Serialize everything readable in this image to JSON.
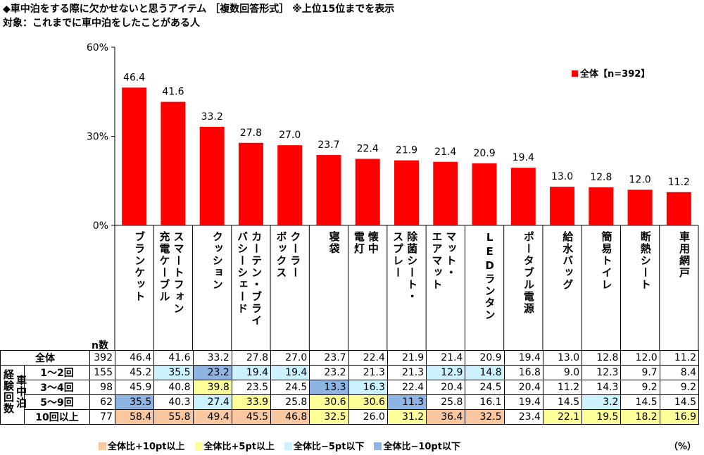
{
  "title": "◆車中泊をする際に欠かせないと思うアイテム ［複数回答形式］ ※上位15位までを表示",
  "subtitle": "対象：これまでに車中泊をしたことがある人",
  "legend_label": "全体【n=392】",
  "n_header": "n数",
  "unit_label": "（%）",
  "colors": {
    "bar": "#ff0000",
    "orange": "#f9c7a0",
    "yellow": "#ffff99",
    "lightblue": "#ccf2ff",
    "blue": "#8db4e2"
  },
  "highlight_legend": [
    {
      "label": "全体比+10pt以上",
      "color": "orange"
    },
    {
      "label": "全体比+5pt以上",
      "color": "yellow"
    },
    {
      "label": "全体比−5pt以下",
      "color": "lightblue"
    },
    {
      "label": "全体比−10pt以下",
      "color": "blue"
    }
  ],
  "side_labels": {
    "group": "経験回数",
    "sub": "車中泊"
  },
  "chart_data": {
    "type": "bar",
    "ylim": [
      0,
      60
    ],
    "yticks": [
      "0%",
      "30%",
      "60%"
    ],
    "ytick_values": [
      0,
      30,
      60
    ],
    "categories": [
      "ブランケット",
      "スマートフォン\n充電ケーブル",
      "クッション",
      "カーテン・ブライ\nバシーシェード",
      "クーラー\nボックス",
      "寝袋",
      "懐中\n電灯",
      "除菌シート・\nスプレー",
      "マット・\nエアマット",
      "LEDランタン",
      "ポータブル電源",
      "給水バッグ",
      "簡易トイレ",
      "断熱シート",
      "車用網戸"
    ],
    "values": [
      46.4,
      41.6,
      33.2,
      27.8,
      27.0,
      23.7,
      22.4,
      21.9,
      21.4,
      20.9,
      19.4,
      13.0,
      12.8,
      12.0,
      11.2
    ],
    "value_labels": [
      "46.4",
      "41.6",
      "33.2",
      "27.8",
      "27.0",
      "23.7",
      "22.4",
      "21.9",
      "21.4",
      "20.9",
      "19.4",
      "13.0",
      "12.8",
      "12.0",
      "11.2"
    ]
  },
  "table": {
    "rows": [
      {
        "label": "全体",
        "n": "392",
        "cells": [
          {
            "v": "46.4",
            "h": ""
          },
          {
            "v": "41.6",
            "h": ""
          },
          {
            "v": "33.2",
            "h": ""
          },
          {
            "v": "27.8",
            "h": ""
          },
          {
            "v": "27.0",
            "h": ""
          },
          {
            "v": "23.7",
            "h": ""
          },
          {
            "v": "22.4",
            "h": ""
          },
          {
            "v": "21.9",
            "h": ""
          },
          {
            "v": "21.4",
            "h": ""
          },
          {
            "v": "20.9",
            "h": ""
          },
          {
            "v": "19.4",
            "h": ""
          },
          {
            "v": "13.0",
            "h": ""
          },
          {
            "v": "12.8",
            "h": ""
          },
          {
            "v": "12.0",
            "h": ""
          },
          {
            "v": "11.2",
            "h": ""
          }
        ]
      },
      {
        "label": "1〜2回",
        "n": "155",
        "cells": [
          {
            "v": "45.2",
            "h": ""
          },
          {
            "v": "35.5",
            "h": "lightblue"
          },
          {
            "v": "23.2",
            "h": "blue"
          },
          {
            "v": "19.4",
            "h": "lightblue"
          },
          {
            "v": "19.4",
            "h": "lightblue"
          },
          {
            "v": "23.2",
            "h": ""
          },
          {
            "v": "21.3",
            "h": ""
          },
          {
            "v": "21.3",
            "h": ""
          },
          {
            "v": "12.9",
            "h": "lightblue"
          },
          {
            "v": "14.8",
            "h": "lightblue"
          },
          {
            "v": "16.8",
            "h": ""
          },
          {
            "v": "9.0",
            "h": ""
          },
          {
            "v": "12.3",
            "h": ""
          },
          {
            "v": "9.7",
            "h": ""
          },
          {
            "v": "8.4",
            "h": ""
          }
        ]
      },
      {
        "label": "3〜4回",
        "n": "98",
        "cells": [
          {
            "v": "45.9",
            "h": ""
          },
          {
            "v": "40.8",
            "h": ""
          },
          {
            "v": "39.8",
            "h": "yellow"
          },
          {
            "v": "23.5",
            "h": ""
          },
          {
            "v": "24.5",
            "h": ""
          },
          {
            "v": "13.3",
            "h": "blue"
          },
          {
            "v": "16.3",
            "h": "lightblue"
          },
          {
            "v": "22.4",
            "h": ""
          },
          {
            "v": "20.4",
            "h": ""
          },
          {
            "v": "24.5",
            "h": ""
          },
          {
            "v": "20.4",
            "h": ""
          },
          {
            "v": "11.2",
            "h": ""
          },
          {
            "v": "14.3",
            "h": ""
          },
          {
            "v": "9.2",
            "h": ""
          },
          {
            "v": "9.2",
            "h": ""
          }
        ]
      },
      {
        "label": "5〜9回",
        "n": "62",
        "cells": [
          {
            "v": "35.5",
            "h": "blue"
          },
          {
            "v": "40.3",
            "h": ""
          },
          {
            "v": "27.4",
            "h": "lightblue"
          },
          {
            "v": "33.9",
            "h": "yellow"
          },
          {
            "v": "25.8",
            "h": ""
          },
          {
            "v": "30.6",
            "h": "yellow"
          },
          {
            "v": "30.6",
            "h": "yellow"
          },
          {
            "v": "11.3",
            "h": "blue"
          },
          {
            "v": "25.8",
            "h": ""
          },
          {
            "v": "16.1",
            "h": ""
          },
          {
            "v": "19.4",
            "h": ""
          },
          {
            "v": "14.5",
            "h": ""
          },
          {
            "v": "3.2",
            "h": "lightblue"
          },
          {
            "v": "14.5",
            "h": ""
          },
          {
            "v": "14.5",
            "h": ""
          }
        ]
      },
      {
        "label": "10回以上",
        "n": "77",
        "cells": [
          {
            "v": "58.4",
            "h": "orange"
          },
          {
            "v": "55.8",
            "h": "orange"
          },
          {
            "v": "49.4",
            "h": "orange"
          },
          {
            "v": "45.5",
            "h": "orange"
          },
          {
            "v": "46.8",
            "h": "orange"
          },
          {
            "v": "32.5",
            "h": "yellow"
          },
          {
            "v": "26.0",
            "h": ""
          },
          {
            "v": "31.2",
            "h": "yellow"
          },
          {
            "v": "36.4",
            "h": "orange"
          },
          {
            "v": "32.5",
            "h": "orange"
          },
          {
            "v": "23.4",
            "h": ""
          },
          {
            "v": "22.1",
            "h": "yellow"
          },
          {
            "v": "19.5",
            "h": "yellow"
          },
          {
            "v": "18.2",
            "h": "yellow"
          },
          {
            "v": "16.9",
            "h": "yellow"
          }
        ]
      }
    ]
  }
}
